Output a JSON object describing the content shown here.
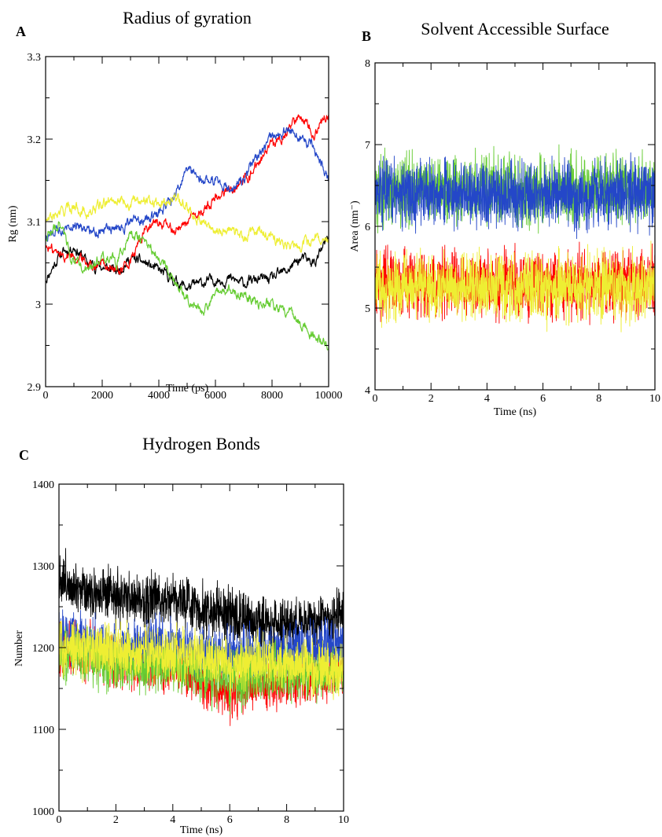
{
  "chart_data": [
    {
      "panel_label": "A",
      "type": "line",
      "title": "Radius of gyration",
      "xlabel": "Time (ps)",
      "ylabel": "Rg (nm)",
      "xlim": [
        0,
        10000
      ],
      "ylim": [
        2.9,
        3.3
      ],
      "xticks": [
        0,
        2000,
        4000,
        6000,
        8000,
        10000
      ],
      "yticks": [
        2.9,
        3,
        3.1,
        3.2,
        3.3
      ],
      "grid": false,
      "noise": 0.004,
      "series": [
        {
          "color": "#000000",
          "x": [
            0,
            500,
            1000,
            1500,
            2000,
            2500,
            3000,
            3500,
            4000,
            4500,
            5000,
            5500,
            6000,
            6500,
            7000,
            7500,
            8000,
            8500,
            9000,
            9500,
            10000
          ],
          "values": [
            3.03,
            3.06,
            3.07,
            3.05,
            3.045,
            3.04,
            3.055,
            3.05,
            3.04,
            3.03,
            3.02,
            3.025,
            3.03,
            3.03,
            3.025,
            3.03,
            3.03,
            3.04,
            3.055,
            3.05,
            3.08
          ]
        },
        {
          "color": "#ff0000",
          "x": [
            0,
            500,
            1000,
            1500,
            2000,
            2500,
            3000,
            3500,
            4000,
            4500,
            5000,
            5500,
            6000,
            6500,
            7000,
            7500,
            8000,
            8500,
            9000,
            9500,
            10000
          ],
          "values": [
            3.07,
            3.06,
            3.06,
            3.05,
            3.05,
            3.04,
            3.05,
            3.09,
            3.1,
            3.09,
            3.1,
            3.11,
            3.13,
            3.14,
            3.15,
            3.17,
            3.19,
            3.21,
            3.23,
            3.21,
            3.23
          ]
        },
        {
          "color": "#2447c8",
          "x": [
            0,
            500,
            1000,
            1500,
            2000,
            2500,
            3000,
            3500,
            4000,
            4500,
            5000,
            5500,
            6000,
            6500,
            7000,
            7500,
            8000,
            8500,
            9000,
            9500,
            10000
          ],
          "values": [
            3.08,
            3.09,
            3.1,
            3.09,
            3.09,
            3.09,
            3.1,
            3.1,
            3.11,
            3.13,
            3.16,
            3.15,
            3.15,
            3.14,
            3.15,
            3.18,
            3.2,
            3.21,
            3.2,
            3.19,
            3.15
          ]
        },
        {
          "color": "#66cc33",
          "x": [
            0,
            500,
            1000,
            1500,
            2000,
            2500,
            3000,
            3500,
            4000,
            4500,
            5000,
            5500,
            6000,
            6500,
            7000,
            7500,
            8000,
            8500,
            9000,
            9500,
            10000
          ],
          "values": [
            3.08,
            3.1,
            3.05,
            3.04,
            3.06,
            3.05,
            3.09,
            3.07,
            3.06,
            3.03,
            3.01,
            2.99,
            3.01,
            3.02,
            3.01,
            3.0,
            3.0,
            2.99,
            2.98,
            2.96,
            2.95
          ]
        },
        {
          "color": "#eeee33",
          "x": [
            0,
            500,
            1000,
            1500,
            2000,
            2500,
            3000,
            3500,
            4000,
            4500,
            5000,
            5500,
            6000,
            6500,
            7000,
            7500,
            8000,
            8500,
            9000,
            9500,
            10000
          ],
          "values": [
            3.1,
            3.11,
            3.12,
            3.11,
            3.12,
            3.13,
            3.12,
            3.13,
            3.12,
            3.13,
            3.12,
            3.1,
            3.09,
            3.09,
            3.08,
            3.09,
            3.08,
            3.07,
            3.07,
            3.08,
            3.08
          ]
        }
      ]
    },
    {
      "panel_label": "B",
      "type": "line",
      "title": "Solvent Accessible Surface",
      "xlabel": "Time (ns)",
      "ylabel": "Area (nm⁻)",
      "xlim": [
        0,
        10
      ],
      "ylim": [
        4,
        8
      ],
      "xticks": [
        0,
        2,
        4,
        6,
        8,
        10
      ],
      "yticks": [
        4,
        5,
        6,
        7,
        8
      ],
      "grid": false,
      "noise": 0.28,
      "series": [
        {
          "color": "#ff0000",
          "x": [
            0,
            2,
            4,
            6,
            8,
            10
          ],
          "values": [
            5.3,
            5.3,
            5.3,
            5.3,
            5.3,
            5.3
          ]
        },
        {
          "color": "#66cc33",
          "x": [
            0,
            2,
            4,
            6,
            8,
            10
          ],
          "values": [
            6.45,
            6.45,
            6.45,
            6.45,
            6.45,
            6.45
          ]
        },
        {
          "color": "#2447c8",
          "x": [
            0,
            2,
            4,
            6,
            8,
            10
          ],
          "values": [
            6.4,
            6.4,
            6.4,
            6.4,
            6.4,
            6.4
          ]
        },
        {
          "color": "#eeee33",
          "x": [
            0,
            2,
            4,
            6,
            8,
            10
          ],
          "values": [
            5.25,
            5.25,
            5.25,
            5.25,
            5.25,
            5.25
          ]
        }
      ]
    },
    {
      "panel_label": "C",
      "type": "line",
      "title": "Hydrogen Bonds",
      "xlabel": "Time (ns)",
      "ylabel": "Number",
      "xlim": [
        0,
        10
      ],
      "ylim": [
        1000,
        1400
      ],
      "xticks": [
        0,
        2,
        4,
        6,
        8,
        10
      ],
      "yticks": [
        1000,
        1100,
        1200,
        1300,
        1400
      ],
      "grid": false,
      "noise": 22,
      "series": [
        {
          "color": "#000000",
          "x": [
            0,
            1,
            2,
            3,
            4,
            5,
            6,
            7,
            8,
            9,
            10
          ],
          "values": [
            1285,
            1270,
            1260,
            1258,
            1262,
            1248,
            1238,
            1232,
            1228,
            1232,
            1238
          ]
        },
        {
          "color": "#ff0000",
          "x": [
            0,
            1,
            2,
            3,
            4,
            5,
            6,
            7,
            8,
            9,
            10
          ],
          "values": [
            1200,
            1195,
            1185,
            1180,
            1175,
            1160,
            1145,
            1155,
            1160,
            1165,
            1170
          ]
        },
        {
          "color": "#2447c8",
          "x": [
            0,
            1,
            2,
            3,
            4,
            5,
            6,
            7,
            8,
            9,
            10
          ],
          "values": [
            1215,
            1205,
            1200,
            1200,
            1205,
            1195,
            1190,
            1190,
            1195,
            1200,
            1205
          ]
        },
        {
          "color": "#66cc33",
          "x": [
            0,
            1,
            2,
            3,
            4,
            5,
            6,
            7,
            8,
            9,
            10
          ],
          "values": [
            1195,
            1190,
            1180,
            1175,
            1180,
            1170,
            1160,
            1165,
            1170,
            1165,
            1170
          ]
        },
        {
          "color": "#eeee33",
          "x": [
            0,
            1,
            2,
            3,
            4,
            5,
            6,
            7,
            8,
            9,
            10
          ],
          "values": [
            1200,
            1198,
            1195,
            1192,
            1190,
            1188,
            1180,
            1185,
            1180,
            1175,
            1172
          ]
        }
      ]
    }
  ]
}
